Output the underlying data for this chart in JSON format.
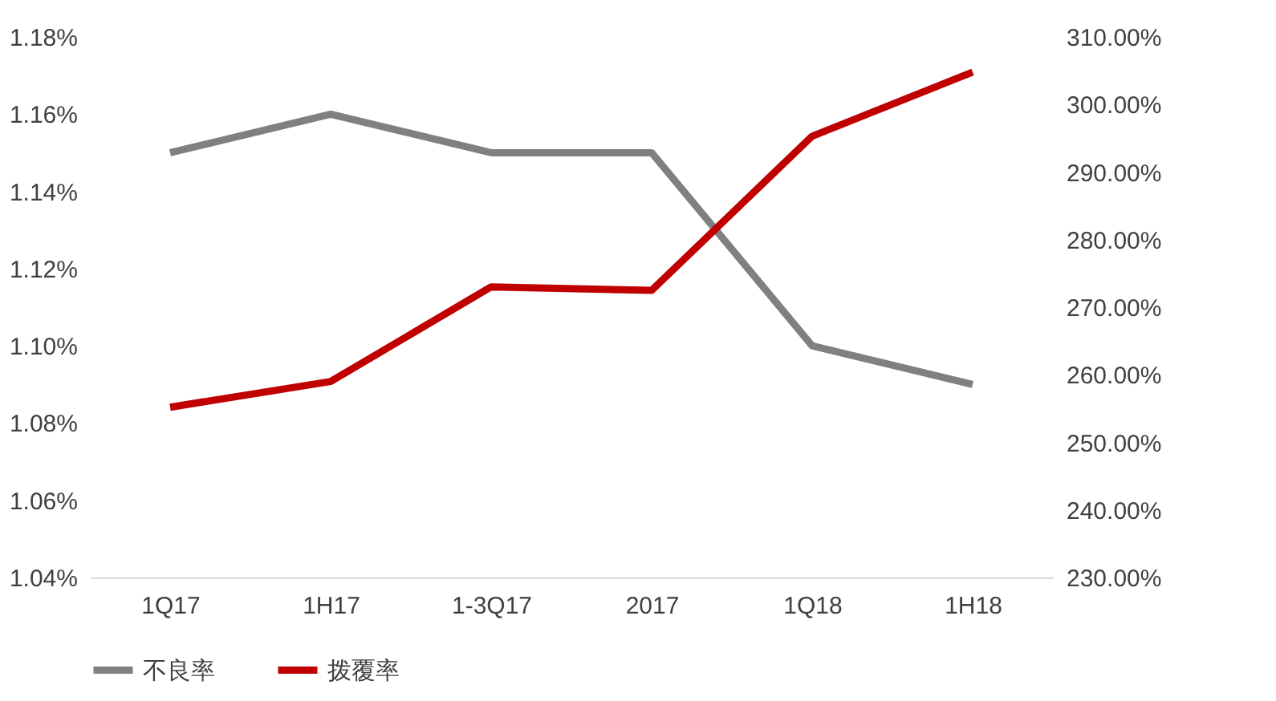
{
  "chart_data": {
    "type": "line",
    "categories": [
      "1Q17",
      "1H17",
      "1-3Q17",
      "2017",
      "1Q18",
      "1H18"
    ],
    "series": [
      {
        "name": "不良率",
        "color": "#808080",
        "values": [
          1.15,
          1.16,
          1.15,
          1.15,
          1.1,
          1.09
        ]
      },
      {
        "name": "拨覆率",
        "color": "#c00000",
        "axis": "y2",
        "values": [
          255.2,
          259.0,
          273.0,
          272.5,
          295.3,
          304.8
        ]
      }
    ],
    "ylim": [
      1.04,
      1.18
    ],
    "yticks": [
      {
        "value": 1.04,
        "label": "1.04%"
      },
      {
        "value": 1.06,
        "label": "1.06%"
      },
      {
        "value": 1.08,
        "label": "1.08%"
      },
      {
        "value": 1.1,
        "label": "1.10%"
      },
      {
        "value": 1.12,
        "label": "1.12%"
      },
      {
        "value": 1.14,
        "label": "1.14%"
      },
      {
        "value": 1.16,
        "label": "1.16%"
      },
      {
        "value": 1.18,
        "label": "1.18%"
      }
    ],
    "y2lim": [
      230,
      310
    ],
    "y2ticks": [
      {
        "value": 230,
        "label": "230.00%"
      },
      {
        "value": 240,
        "label": "240.00%"
      },
      {
        "value": 250,
        "label": "250.00%"
      },
      {
        "value": 260,
        "label": "260.00%"
      },
      {
        "value": 270,
        "label": "270.00%"
      },
      {
        "value": 280,
        "label": "280.00%"
      },
      {
        "value": 290,
        "label": "290.00%"
      },
      {
        "value": 300,
        "label": "300.00%"
      },
      {
        "value": 310,
        "label": "310.00%"
      }
    ],
    "grid": false,
    "legend": "bottom",
    "line_style": "solid",
    "marker": "none"
  }
}
